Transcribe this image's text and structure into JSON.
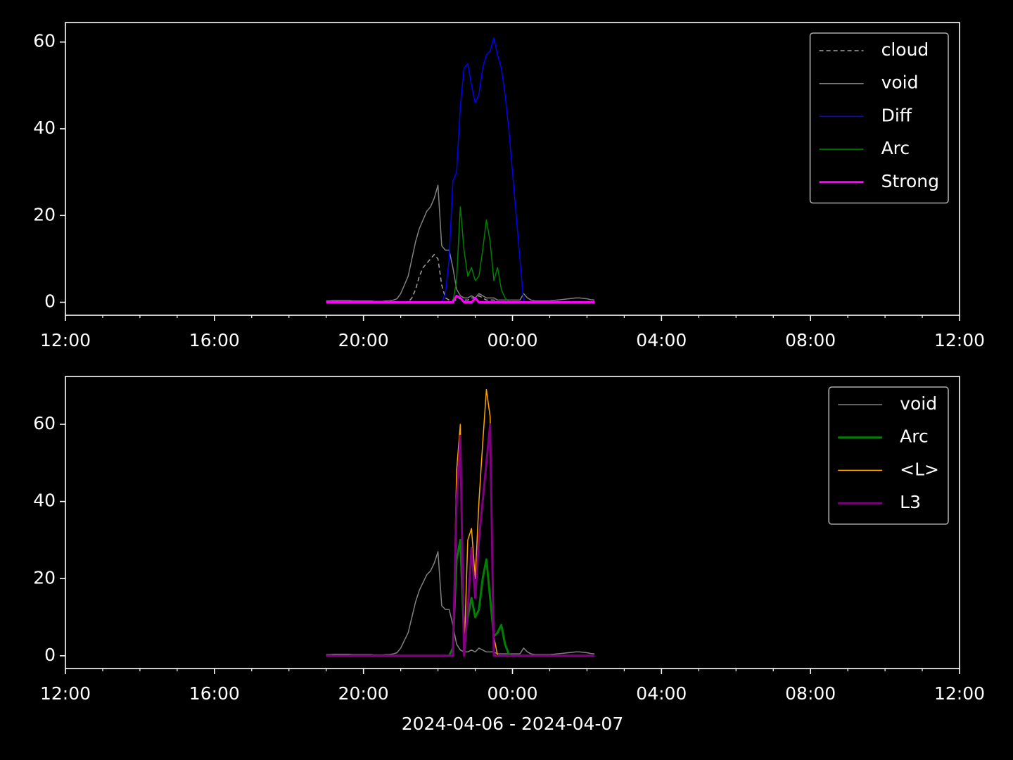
{
  "chart_data": [
    {
      "type": "line",
      "x": [
        19,
        19.1,
        19.2,
        19.3,
        19.4,
        19.5,
        19.6,
        19.7,
        19.8,
        19.9,
        20,
        20.1,
        20.2,
        20.3,
        20.4,
        20.5,
        20.6,
        20.7,
        20.8,
        20.9,
        21,
        21.1,
        21.2,
        21.3,
        21.4,
        21.5,
        21.6,
        21.7,
        21.8,
        21.9,
        22,
        22.1,
        22.2,
        22.3,
        22.4,
        22.5,
        22.6,
        22.7,
        22.8,
        22.9,
        23,
        23.1,
        23.2,
        23.3,
        23.4,
        23.5,
        23.6,
        23.7,
        23.8,
        23.9,
        24,
        24.1,
        24.2,
        24.3,
        24.4,
        24.5,
        24.6,
        24.7,
        24.8,
        24.9,
        25,
        25.1,
        25.2,
        25.3,
        25.4,
        25.5,
        25.6,
        25.7,
        25.8,
        25.9,
        26,
        26.1,
        26.2
      ],
      "series": [
        {
          "name": "cloud",
          "color": "#a0a0a0",
          "linestyle": "dashed",
          "linewidth": 1.5,
          "values": [
            0,
            0,
            0,
            0,
            0,
            0,
            0,
            0,
            0,
            0,
            0,
            0,
            0,
            0,
            0,
            0,
            0,
            0,
            0,
            0,
            0,
            0,
            0,
            1,
            3,
            6,
            8,
            9,
            10,
            11,
            10,
            4,
            1,
            0.5,
            0.5,
            0.5,
            1,
            0.5,
            0.5,
            1,
            1,
            1.5,
            1,
            0.5,
            0.5,
            0.5,
            0,
            0,
            0,
            0,
            0,
            0,
            0,
            0,
            0,
            0,
            0,
            0,
            0,
            0,
            0,
            0,
            0,
            0,
            0,
            0,
            0,
            0,
            0,
            0,
            0,
            0,
            0
          ]
        },
        {
          "name": "void",
          "color": "#808080",
          "linestyle": "solid",
          "linewidth": 1.5,
          "values": [
            0.3,
            0.3,
            0.4,
            0.4,
            0.4,
            0.4,
            0.4,
            0.3,
            0.3,
            0.3,
            0.3,
            0.3,
            0.3,
            0.2,
            0.2,
            0.2,
            0.3,
            0.3,
            0.5,
            0.8,
            2,
            4,
            6,
            10,
            14,
            17,
            19,
            21,
            22,
            24,
            27,
            13,
            12,
            12,
            8,
            3,
            1.5,
            1,
            1,
            1.5,
            1,
            2,
            1.5,
            1,
            1,
            1,
            0.5,
            0.5,
            0.5,
            0.5,
            0.5,
            0.5,
            0.5,
            2,
            1,
            0.5,
            0.3,
            0.3,
            0.3,
            0.3,
            0.3,
            0.4,
            0.5,
            0.6,
            0.7,
            0.8,
            0.9,
            1,
            1,
            0.9,
            0.8,
            0.6,
            0.5
          ]
        },
        {
          "name": "Diff",
          "color": "#0000ff",
          "linestyle": "solid",
          "linewidth": 1.5,
          "values": [
            0,
            0,
            0,
            0,
            0,
            0,
            0,
            0,
            0,
            0,
            0,
            0,
            0,
            0,
            0,
            0,
            0,
            0,
            0,
            0,
            0,
            0,
            0,
            0,
            0,
            0,
            0,
            0,
            0,
            0,
            0,
            0,
            2,
            10,
            28,
            30,
            45,
            54,
            55,
            50,
            46,
            48,
            54,
            57,
            58,
            61,
            57,
            54,
            48,
            40,
            30,
            20,
            10,
            0,
            0,
            0,
            0,
            0,
            0,
            0,
            0,
            0,
            0,
            0,
            0,
            0,
            0,
            0,
            0,
            0,
            0,
            0,
            0
          ]
        },
        {
          "name": "Arc",
          "color": "#008000",
          "linestyle": "solid",
          "linewidth": 1.5,
          "values": [
            0,
            0,
            0,
            0,
            0,
            0,
            0,
            0,
            0,
            0,
            0,
            0,
            0,
            0,
            0,
            0,
            0,
            0,
            0,
            0,
            0,
            0,
            0,
            0,
            0,
            0,
            0,
            0,
            0,
            0,
            0,
            0,
            0,
            0,
            0,
            5,
            22,
            12,
            6,
            8,
            5,
            6,
            12,
            19,
            14,
            5,
            8,
            3,
            1,
            0,
            0,
            0,
            0,
            0,
            0,
            0,
            0,
            0,
            0,
            0,
            0,
            0,
            0,
            0,
            0,
            0,
            0,
            0,
            0,
            0,
            0,
            0,
            0
          ]
        },
        {
          "name": "Strong",
          "color": "#ff00ff",
          "linestyle": "solid",
          "linewidth": 3,
          "values": [
            0,
            0,
            0,
            0,
            0,
            0,
            0,
            0,
            0,
            0,
            0,
            0,
            0,
            0,
            0,
            0,
            0,
            0,
            0,
            0,
            0,
            0,
            0,
            0,
            0,
            0,
            0,
            0,
            0,
            0,
            0,
            0,
            0,
            0,
            0,
            1.5,
            1,
            0,
            0,
            0,
            1,
            0,
            0,
            0,
            0,
            0,
            0,
            0,
            0,
            0,
            0,
            0,
            0,
            0,
            0,
            0,
            0,
            0,
            0,
            0,
            0,
            0,
            0,
            0,
            0,
            0,
            0,
            0,
            0,
            0,
            0,
            0,
            0
          ]
        }
      ],
      "xlim": [
        12,
        36
      ],
      "xticks": [
        {
          "value": 12,
          "label": "12:00"
        },
        {
          "value": 16,
          "label": "16:00"
        },
        {
          "value": 20,
          "label": "20:00"
        },
        {
          "value": 24,
          "label": "00:00"
        },
        {
          "value": 28,
          "label": "04:00"
        },
        {
          "value": 32,
          "label": "08:00"
        },
        {
          "value": 36,
          "label": "12:00"
        }
      ],
      "xminorticks": [
        13,
        14,
        15,
        17,
        18,
        19,
        21,
        22,
        23,
        25,
        26,
        27,
        29,
        30,
        31,
        33,
        34,
        35
      ],
      "ylim": [
        -3,
        64.5
      ],
      "yticks": [
        0,
        20,
        40,
        60
      ],
      "legend": "upper right"
    },
    {
      "type": "line",
      "x": [
        19,
        19.1,
        19.2,
        19.3,
        19.4,
        19.5,
        19.6,
        19.7,
        19.8,
        19.9,
        20,
        20.1,
        20.2,
        20.3,
        20.4,
        20.5,
        20.6,
        20.7,
        20.8,
        20.9,
        21,
        21.1,
        21.2,
        21.3,
        21.4,
        21.5,
        21.6,
        21.7,
        21.8,
        21.9,
        22,
        22.1,
        22.2,
        22.3,
        22.4,
        22.5,
        22.6,
        22.7,
        22.8,
        22.9,
        23,
        23.1,
        23.2,
        23.3,
        23.4,
        23.5,
        23.6,
        23.7,
        23.8,
        23.9,
        24,
        24.1,
        24.2,
        24.3,
        24.4,
        24.5,
        24.6,
        24.7,
        24.8,
        24.9,
        25,
        25.1,
        25.2,
        25.3,
        25.4,
        25.5,
        25.6,
        25.7,
        25.8,
        25.9,
        26,
        26.1,
        26.2
      ],
      "series": [
        {
          "name": "void",
          "color": "#808080",
          "linestyle": "solid",
          "linewidth": 1.5,
          "values": [
            0.3,
            0.3,
            0.4,
            0.4,
            0.4,
            0.4,
            0.4,
            0.3,
            0.3,
            0.3,
            0.3,
            0.3,
            0.3,
            0.2,
            0.2,
            0.2,
            0.3,
            0.3,
            0.5,
            0.8,
            2,
            4,
            6,
            10,
            14,
            17,
            19,
            21,
            22,
            24,
            27,
            13,
            12,
            12,
            8,
            3,
            1.5,
            1,
            1,
            1.5,
            1,
            2,
            1.5,
            1,
            1,
            1,
            0.5,
            0.5,
            0.5,
            0.5,
            0.5,
            0.5,
            0.5,
            2,
            1,
            0.5,
            0.3,
            0.3,
            0.3,
            0.3,
            0.3,
            0.4,
            0.5,
            0.6,
            0.7,
            0.8,
            0.9,
            1,
            1,
            0.9,
            0.8,
            0.6,
            0.5
          ]
        },
        {
          "name": "Arc",
          "color": "#008000",
          "linestyle": "solid",
          "linewidth": 3,
          "values": [
            0,
            0,
            0,
            0,
            0,
            0,
            0,
            0,
            0,
            0,
            0,
            0,
            0,
            0,
            0,
            0,
            0,
            0,
            0,
            0,
            0,
            0,
            0,
            0,
            0,
            0,
            0,
            0,
            0,
            0,
            0,
            0,
            0,
            0,
            2,
            25,
            30,
            5,
            10,
            15,
            10,
            12,
            20,
            25,
            15,
            5,
            6,
            8,
            3,
            0.5,
            0,
            0,
            0,
            0,
            0,
            0,
            0,
            0,
            0,
            0,
            0,
            0,
            0,
            0,
            0,
            0,
            0,
            0,
            0,
            0,
            0,
            0,
            0
          ]
        },
        {
          "name": "<L>",
          "color": "#ffa500",
          "linestyle": "solid",
          "linewidth": 1.5,
          "values": [
            0,
            0,
            0,
            0,
            0,
            0,
            0,
            0,
            0,
            0,
            0,
            0,
            0,
            0,
            0,
            0,
            0,
            0,
            0,
            0,
            0,
            0,
            0,
            0,
            0,
            0,
            0,
            0,
            0,
            0,
            0,
            0,
            0,
            0,
            0,
            48,
            60,
            0,
            30,
            33,
            20,
            40,
            55,
            69,
            62,
            5,
            0,
            0,
            0,
            0,
            0,
            0,
            0,
            0,
            0,
            0,
            0,
            0,
            0,
            0,
            0,
            0,
            0,
            0,
            0,
            0,
            0,
            0,
            0,
            0,
            0,
            0,
            0
          ]
        },
        {
          "name": "L3",
          "color": "#800080",
          "linestyle": "solid",
          "linewidth": 3,
          "values": [
            0,
            0,
            0,
            0,
            0,
            0,
            0,
            0,
            0,
            0,
            0,
            0,
            0,
            0,
            0,
            0,
            0,
            0,
            0,
            0,
            0,
            0,
            0,
            0,
            0,
            0,
            0,
            0,
            0,
            0,
            0,
            0,
            0,
            0,
            0,
            40,
            57,
            0,
            12,
            28,
            15,
            30,
            40,
            50,
            60,
            0,
            0,
            0,
            0,
            0,
            0,
            0,
            0,
            0,
            0,
            0,
            0,
            0,
            0,
            0,
            0,
            0,
            0,
            0,
            0,
            0,
            0,
            0,
            0,
            0,
            0,
            0,
            0
          ]
        }
      ],
      "xlim": [
        12,
        36
      ],
      "xticks": [
        {
          "value": 12,
          "label": "12:00"
        },
        {
          "value": 16,
          "label": "16:00"
        },
        {
          "value": 20,
          "label": "20:00"
        },
        {
          "value": 24,
          "label": "00:00"
        },
        {
          "value": 28,
          "label": "04:00"
        },
        {
          "value": 32,
          "label": "08:00"
        },
        {
          "value": 36,
          "label": "12:00"
        }
      ],
      "xminorticks": [
        13,
        14,
        15,
        17,
        18,
        19,
        21,
        22,
        23,
        25,
        26,
        27,
        29,
        30,
        31,
        33,
        34,
        35
      ],
      "ylim": [
        -3.3,
        72.4
      ],
      "yticks": [
        0,
        20,
        40,
        60
      ],
      "xlabel": "2024-04-06 - 2024-04-07",
      "legend": "upper right"
    }
  ]
}
